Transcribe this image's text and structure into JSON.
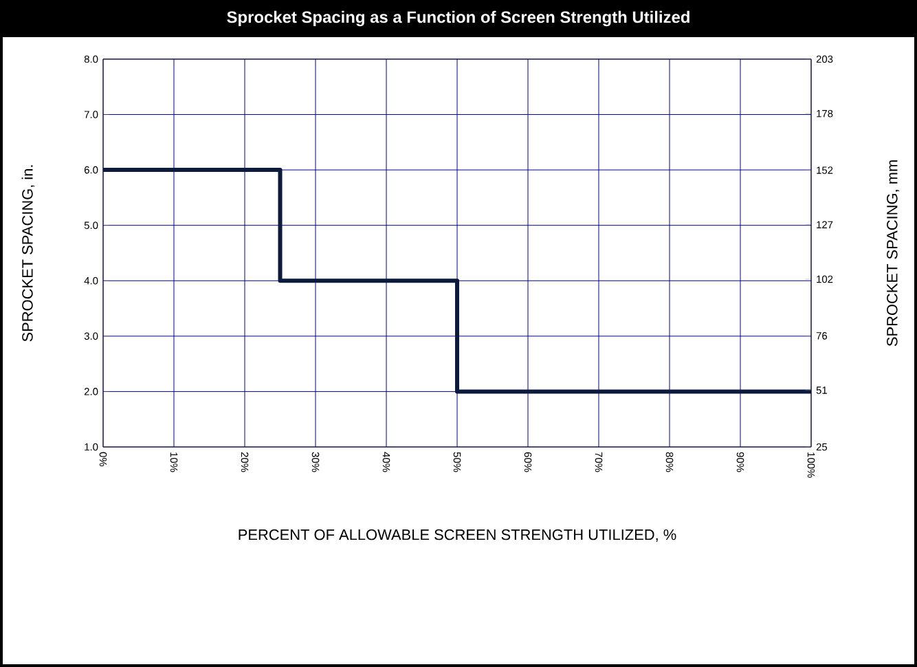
{
  "chart_data": {
    "type": "step",
    "title": "Sprocket Spacing as a Function of Screen Strength Utilized",
    "xlabel": "PERCENT OF ALLOWABLE SCREEN STRENGTH UTILIZED, %",
    "ylabel": "SPROCKET SPACING, in.",
    "y2label": "SPROCKET SPACING, mm",
    "x": [
      0,
      25,
      50,
      100
    ],
    "series": [
      {
        "color": "#0b1a3d",
        "values": [
          6.0,
          4.0,
          2.0,
          2.0
        ]
      }
    ],
    "xlim": [
      0,
      100
    ],
    "xticks": [
      {
        "value": 0,
        "label": "0%"
      },
      {
        "value": 10,
        "label": "10%"
      },
      {
        "value": 20,
        "label": "20%"
      },
      {
        "value": 30,
        "label": "30%"
      },
      {
        "value": 40,
        "label": "40%"
      },
      {
        "value": 50,
        "label": "50%"
      },
      {
        "value": 60,
        "label": "60%"
      },
      {
        "value": 70,
        "label": "70%"
      },
      {
        "value": 80,
        "label": "80%"
      },
      {
        "value": 90,
        "label": "90%"
      },
      {
        "value": 100,
        "label": "100%"
      }
    ],
    "ylim": [
      1,
      8
    ],
    "yticks": [
      {
        "value": 1,
        "label": "1.0"
      },
      {
        "value": 2,
        "label": "2.0"
      },
      {
        "value": 3,
        "label": "3.0"
      },
      {
        "value": 4,
        "label": "4.0"
      },
      {
        "value": 5,
        "label": "5.0"
      },
      {
        "value": 6,
        "label": "6.0"
      },
      {
        "value": 7,
        "label": "7.0"
      },
      {
        "value": 8,
        "label": "8.0"
      }
    ],
    "y2lim": [
      25,
      203
    ],
    "y2ticks": [
      25,
      51,
      76,
      102,
      127,
      152,
      178,
      203
    ],
    "grid": true,
    "marker": "none",
    "line_style": "solid"
  }
}
